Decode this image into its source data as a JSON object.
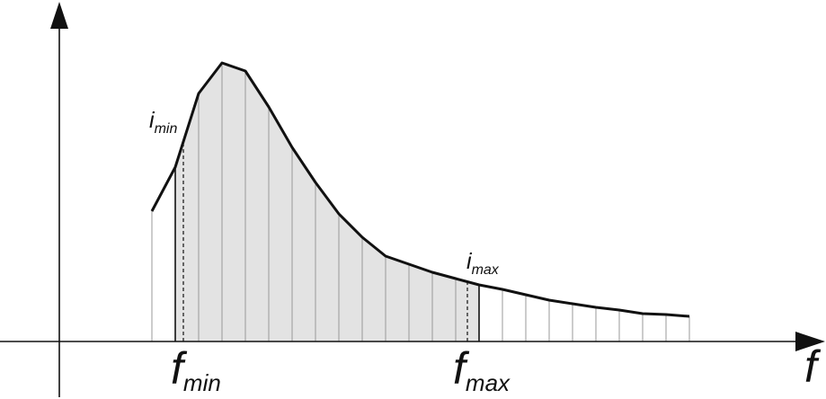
{
  "diagram": {
    "axis_label": "f",
    "labels": {
      "f_min_main": "f",
      "f_min_sub": "min",
      "f_max_main": "f",
      "f_max_sub": "max",
      "i_min_main": "i",
      "i_min_sub": "min",
      "i_max_main": "i",
      "i_max_sub": "max"
    },
    "colors": {
      "shade": "#e3e3e3",
      "curve": "#111111",
      "strip_line": "#9a9a9a",
      "axis": "#111111"
    }
  }
}
